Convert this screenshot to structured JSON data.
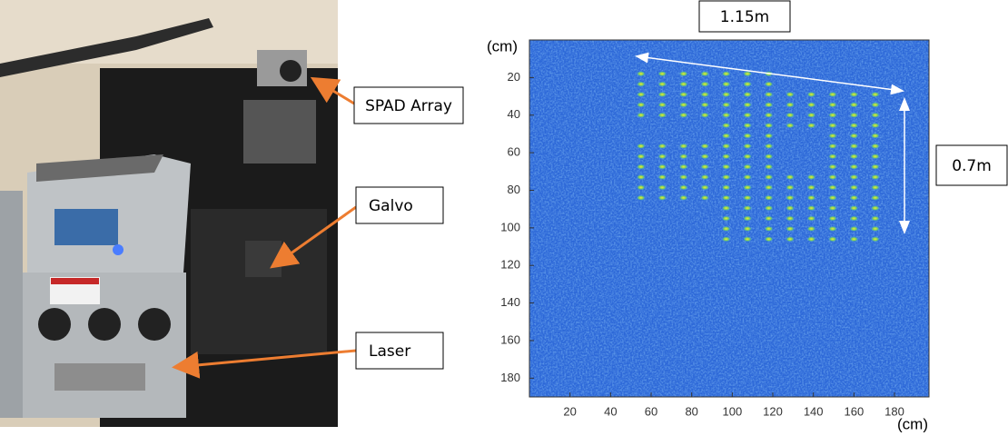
{
  "photo": {
    "labels": [
      "SPAD Array",
      "Galvo",
      "Laser"
    ]
  },
  "chart_data": {
    "type": "heatmap",
    "xlabel": "(cm)",
    "ylabel": "(cm)",
    "annotations": [
      "1.15m",
      "0.7m"
    ],
    "xlim": [
      0,
      197
    ],
    "ylim": [
      0,
      190
    ],
    "xticks": [
      20,
      40,
      60,
      80,
      100,
      120,
      140,
      160,
      180
    ],
    "yticks": [
      20,
      40,
      60,
      80,
      100,
      120,
      140,
      160,
      180
    ]
  }
}
